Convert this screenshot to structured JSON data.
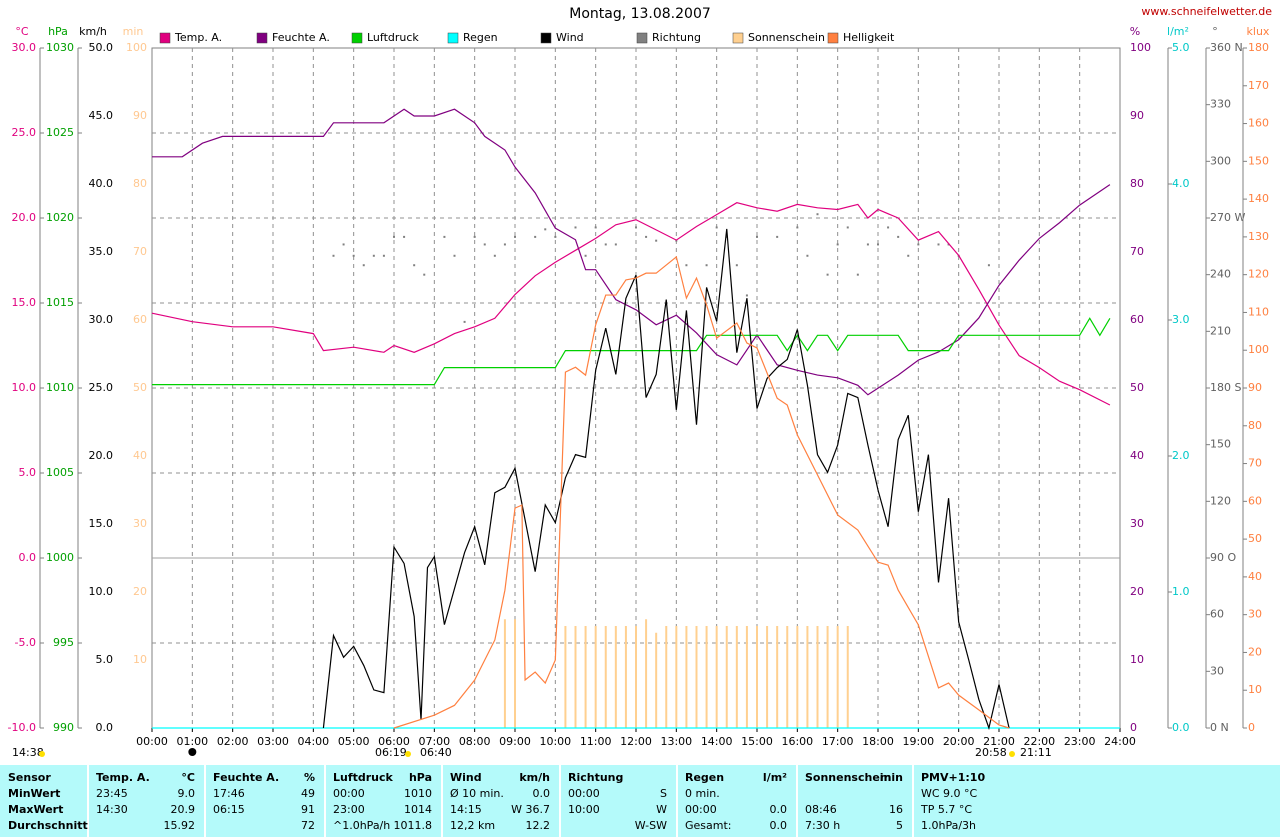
{
  "chart_data": {
    "type": "line",
    "title": "Montag, 13.08.2007",
    "source": "www.schneifelwetter.de",
    "xlim": [
      0,
      24
    ],
    "xticks": [
      {
        "value": 0,
        "label": "00:00"
      },
      {
        "value": 1,
        "label": "01:00"
      },
      {
        "value": 2,
        "label": "02:00"
      },
      {
        "value": 3,
        "label": "03:00"
      },
      {
        "value": 4,
        "label": "04:00"
      },
      {
        "value": 5,
        "label": "05:00"
      },
      {
        "value": 6,
        "label": "06:00"
      },
      {
        "value": 7,
        "label": "07:00"
      },
      {
        "value": 8,
        "label": "08:00"
      },
      {
        "value": 9,
        "label": "09:00"
      },
      {
        "value": 10,
        "label": "10:00"
      },
      {
        "value": 11,
        "label": "11:00"
      },
      {
        "value": 12,
        "label": "12:00"
      },
      {
        "value": 13,
        "label": "13:00"
      },
      {
        "value": 14,
        "label": "14:00"
      },
      {
        "value": 15,
        "label": "15:00"
      },
      {
        "value": 16,
        "label": "16:00"
      },
      {
        "value": 17,
        "label": "17:00"
      },
      {
        "value": 18,
        "label": "18:00"
      },
      {
        "value": 19,
        "label": "19:00"
      },
      {
        "value": 20,
        "label": "20:00"
      },
      {
        "value": 21,
        "label": "21:00"
      },
      {
        "value": 22,
        "label": "22:00"
      },
      {
        "value": 23,
        "label": "23:00"
      },
      {
        "value": 24,
        "label": "24:00"
      }
    ],
    "grid": true,
    "axes": [
      {
        "unit": "°C",
        "color": "#e0007f",
        "lim": [
          -10,
          30
        ],
        "ticks": [
          {
            "value": -10,
            "label": "-10.0"
          },
          {
            "value": -5,
            "label": "-5.0"
          },
          {
            "value": 0,
            "label": "0.0"
          },
          {
            "value": 5,
            "label": "5.0"
          },
          {
            "value": 10,
            "label": "10.0"
          },
          {
            "value": 15,
            "label": "15.0"
          },
          {
            "value": 20,
            "label": "20.0"
          },
          {
            "value": 25,
            "label": "25.0"
          },
          {
            "value": 30,
            "label": "30.0"
          }
        ]
      },
      {
        "unit": "hPa",
        "color": "#00a000",
        "lim": [
          990,
          1030
        ],
        "ticks": [
          990,
          995,
          1000,
          1005,
          1010,
          1015,
          1020,
          1025,
          1030
        ]
      },
      {
        "unit": "km/h",
        "color": "#000000",
        "lim": [
          0,
          50
        ],
        "ticks": [
          {
            "value": 0,
            "label": "0.0"
          },
          {
            "value": 5,
            "label": "5.0"
          },
          {
            "value": 10,
            "label": "10.0"
          },
          {
            "value": 15,
            "label": "15.0"
          },
          {
            "value": 20,
            "label": "20.0"
          },
          {
            "value": 25,
            "label": "25.0"
          },
          {
            "value": 30,
            "label": "30.0"
          },
          {
            "value": 35,
            "label": "35.0"
          },
          {
            "value": 40,
            "label": "40.0"
          },
          {
            "value": 45,
            "label": "45.0"
          },
          {
            "value": 50,
            "label": "50.0"
          }
        ]
      },
      {
        "unit": "min",
        "color": "#ffc890",
        "lim": [
          0,
          100
        ],
        "ticks": [
          10,
          20,
          30,
          40,
          50,
          60,
          70,
          80,
          90,
          100
        ]
      },
      {
        "unit": "%",
        "color": "#800080",
        "lim": [
          0,
          100
        ],
        "ticks": [
          0,
          10,
          20,
          30,
          40,
          50,
          60,
          70,
          80,
          90,
          100
        ]
      },
      {
        "unit": "l/m²",
        "color": "#00c8c8",
        "lim": [
          0,
          5
        ],
        "ticks": [
          {
            "value": 0,
            "label": "0.0"
          },
          {
            "value": 1,
            "label": "1.0"
          },
          {
            "value": 2,
            "label": "2.0"
          },
          {
            "value": 3,
            "label": "3.0"
          },
          {
            "value": 4,
            "label": "4.0"
          },
          {
            "value": 5,
            "label": "5.0"
          }
        ]
      },
      {
        "unit": "°",
        "color": "#606060",
        "lim": [
          0,
          360
        ],
        "ticks": [
          {
            "value": 0,
            "label": "0 N"
          },
          30,
          60,
          {
            "value": 90,
            "label": "90 O"
          },
          120,
          150,
          {
            "value": 180,
            "label": "180 S"
          },
          210,
          240,
          {
            "value": 270,
            "label": "270 W"
          },
          300,
          330,
          {
            "value": 360,
            "label": "360 N"
          }
        ]
      },
      {
        "unit": "klux",
        "color": "#ff8040",
        "lim": [
          0,
          180
        ],
        "ticks": [
          0,
          10,
          20,
          30,
          40,
          50,
          60,
          70,
          80,
          90,
          100,
          110,
          120,
          130,
          140,
          150,
          160,
          170,
          180
        ]
      }
    ],
    "series": [
      {
        "name": "Temp. A.",
        "color": "#e0007f",
        "axis": "°C",
        "style": "line",
        "x": [
          0,
          1,
          2,
          3,
          4,
          4.25,
          5,
          5.75,
          6,
          6.5,
          7,
          7.5,
          8,
          8.5,
          9,
          9.5,
          10,
          10.5,
          11,
          11.5,
          12,
          12.5,
          13,
          13.5,
          14,
          14.5,
          15,
          15.5,
          16,
          16.5,
          17,
          17.5,
          17.75,
          18,
          18.5,
          19,
          19.5,
          20,
          20.5,
          21,
          21.5,
          22,
          22.5,
          23,
          23.75
        ],
        "values": [
          14.4,
          13.9,
          13.6,
          13.6,
          13.2,
          12.2,
          12.4,
          12.1,
          12.5,
          12.1,
          12.6,
          13.2,
          13.6,
          14.1,
          15.5,
          16.6,
          17.4,
          18.1,
          18.8,
          19.6,
          19.9,
          19.3,
          18.7,
          19.5,
          20.2,
          20.9,
          20.6,
          20.4,
          20.8,
          20.6,
          20.5,
          20.8,
          20.0,
          20.5,
          20.0,
          18.7,
          19.2,
          17.8,
          15.8,
          13.7,
          11.9,
          11.2,
          10.4,
          9.9,
          9.0
        ]
      },
      {
        "name": "Feuchte A.",
        "color": "#800080",
        "axis": "%",
        "style": "line",
        "x": [
          0,
          0.75,
          1.25,
          1.75,
          3,
          4.25,
          4.5,
          5.75,
          6.25,
          6.5,
          7,
          7.5,
          8,
          8.25,
          8.75,
          9,
          9.5,
          10,
          10.5,
          10.75,
          11,
          11.5,
          12,
          12.5,
          13,
          13.5,
          14,
          14.5,
          15,
          15.5,
          16,
          16.5,
          17,
          17.5,
          17.75,
          18.5,
          19,
          19.5,
          20,
          20.5,
          21,
          21.5,
          22,
          22.5,
          23,
          23.75
        ],
        "values": [
          84,
          84,
          86,
          87,
          87,
          87,
          89,
          89,
          91,
          90,
          90,
          91,
          89,
          87,
          85,
          82.5,
          78.7,
          73.5,
          71.8,
          67.4,
          67.4,
          63,
          61.5,
          59.3,
          60.7,
          58.1,
          54.9,
          53.4,
          57.8,
          53.4,
          52.6,
          51.9,
          51.5,
          50.4,
          49,
          51.9,
          54.1,
          55.3,
          57.1,
          60.3,
          65.1,
          68.8,
          72,
          74.3,
          76.9,
          79.9
        ]
      },
      {
        "name": "Luftdruck",
        "color": "#00d000",
        "axis": "hPa",
        "style": "line",
        "x": [
          0,
          7,
          7.25,
          10,
          10.25,
          13.5,
          13.75,
          15.5,
          15.75,
          16,
          16.25,
          16.5,
          16.75,
          17,
          17.25,
          18.5,
          18.75,
          19.75,
          20,
          23,
          23.25,
          23.5,
          23.75
        ],
        "values": [
          1010.2,
          1010.2,
          1011.2,
          1011.2,
          1012.2,
          1012.2,
          1013.1,
          1013.1,
          1012.2,
          1013.1,
          1012.2,
          1013.1,
          1013.1,
          1012.2,
          1013.1,
          1013.1,
          1012.2,
          1012.2,
          1013.1,
          1013.1,
          1014.1,
          1013.1,
          1014.1
        ]
      },
      {
        "name": "Regen",
        "color": "#00ffff",
        "axis": "l/m²",
        "style": "line",
        "x": [
          0,
          24
        ],
        "values": [
          0,
          0
        ]
      },
      {
        "name": "Wind",
        "color": "#000000",
        "axis": "km/h",
        "style": "line",
        "x": [
          4.25,
          4.5,
          4.75,
          5,
          5.25,
          5.5,
          5.75,
          6,
          6.25,
          6.5,
          6.67,
          6.83,
          7,
          7.25,
          7.75,
          8,
          8.25,
          8.5,
          8.75,
          9,
          9.25,
          9.5,
          9.75,
          10,
          10.25,
          10.5,
          10.75,
          11,
          11.25,
          11.5,
          11.75,
          12,
          12.25,
          12.5,
          12.75,
          13,
          13.25,
          13.5,
          13.75,
          14,
          14.25,
          14.5,
          14.75,
          15,
          15.25,
          15.5,
          15.75,
          16,
          16.25,
          16.5,
          16.75,
          17,
          17.25,
          17.5,
          17.75,
          18,
          18.25,
          18.5,
          18.75,
          19,
          19.25,
          19.5,
          19.75,
          20,
          20.25,
          20.5,
          20.75,
          21,
          21.25
        ],
        "values": [
          0,
          6.8,
          5.2,
          6.0,
          4.6,
          2.8,
          2.6,
          13.3,
          12.1,
          8.2,
          0.6,
          11.8,
          12.6,
          7.6,
          12.9,
          14.8,
          12.0,
          17.3,
          17.7,
          19.1,
          15.3,
          11.5,
          16.4,
          15.1,
          18.4,
          20.1,
          19.9,
          26.3,
          29.4,
          26.0,
          31.6,
          33.3,
          24.3,
          26.0,
          31.5,
          23.4,
          30.7,
          22.3,
          32.4,
          29.9,
          36.7,
          27.6,
          31.6,
          23.5,
          25.7,
          26.5,
          27.1,
          29.3,
          25.2,
          20.1,
          18.8,
          20.8,
          24.6,
          24.3,
          20.8,
          17.5,
          14.8,
          21.2,
          23.0,
          15.9,
          20.1,
          10.7,
          16.9,
          7.8,
          5.0,
          2.1,
          0,
          3.2,
          0
        ]
      },
      {
        "name": "Richtung",
        "color": "#808080",
        "axis": "°",
        "style": "dots",
        "x": [
          4.5,
          4.75,
          5,
          5.25,
          5.5,
          5.75,
          6,
          6.25,
          6.5,
          6.75,
          7.25,
          7.5,
          7.75,
          8,
          8.25,
          8.5,
          8.75,
          9,
          9.5,
          9.75,
          10,
          10.5,
          10.75,
          11,
          11.25,
          11.5,
          12,
          12.25,
          12.5,
          13,
          13.25,
          13.75,
          14,
          14.25,
          14.5,
          14.75,
          15,
          15.5,
          16,
          16.25,
          16.5,
          16.75,
          17,
          17.25,
          17.5,
          17.75,
          18,
          18.25,
          18.5,
          18.75,
          19,
          19.5,
          19.75,
          20,
          20.75
        ],
        "values": [
          250,
          256,
          250,
          245,
          250,
          250,
          260,
          260,
          245,
          240,
          260,
          250,
          215,
          260,
          256,
          250,
          256,
          260,
          260,
          264,
          260,
          265,
          250,
          265,
          256,
          256,
          265,
          260,
          258,
          258,
          245,
          245,
          265,
          260,
          245,
          229,
          260,
          260,
          265,
          250,
          272,
          240,
          256,
          265,
          240,
          256,
          256,
          265,
          260,
          250,
          256,
          256,
          256,
          250,
          245
        ]
      },
      {
        "name": "Sonnenschein",
        "color": "#ffd090",
        "axis": "min",
        "style": "bars",
        "x": [
          8.75,
          9,
          10.25,
          10.5,
          10.75,
          11,
          11.25,
          11.5,
          11.75,
          12,
          12.25,
          12.5,
          12.75,
          13,
          13.25,
          13.5,
          13.75,
          14,
          14.25,
          14.5,
          14.75,
          15,
          15.25,
          15.5,
          15.75,
          16,
          16.25,
          16.5,
          16.75,
          17,
          17.25
        ],
        "values": [
          16,
          16,
          15,
          15,
          15,
          15,
          15,
          15,
          15,
          15,
          16,
          14,
          15,
          15,
          15,
          15,
          15,
          15,
          15,
          15,
          15,
          15,
          15,
          15,
          15,
          15,
          15,
          15,
          15,
          15,
          15
        ]
      },
      {
        "name": "Helligkeit",
        "color": "#ff8040",
        "axis": "klux",
        "style": "line",
        "x": [
          6,
          7,
          7.5,
          8,
          8.5,
          8.75,
          9,
          9.17,
          9.25,
          9.5,
          9.75,
          10,
          10.25,
          10.5,
          10.75,
          11,
          11.25,
          11.5,
          11.75,
          12,
          12.25,
          12.5,
          13,
          13.25,
          13.5,
          13.75,
          14,
          14.5,
          14.75,
          15,
          15.5,
          15.75,
          16,
          16.5,
          17,
          17.5,
          18,
          18.25,
          18.5,
          19,
          19.5,
          19.75,
          20,
          20.5,
          21,
          21.25
        ],
        "values": [
          0,
          3.4,
          6,
          12.7,
          23.3,
          36.5,
          58.2,
          59,
          12.7,
          14.8,
          11.9,
          18,
          94.2,
          95.5,
          93.4,
          106.7,
          114.6,
          114.6,
          118.6,
          119.1,
          120.4,
          120.4,
          124.7,
          113.8,
          119.1,
          112,
          103.2,
          107.2,
          101.9,
          100.6,
          87.3,
          85.5,
          77.6,
          67,
          56.4,
          52.4,
          43.9,
          43.1,
          36.5,
          27.3,
          10.6,
          11.9,
          8.7,
          4.8,
          0.8,
          0
        ]
      }
    ],
    "annotations": [
      "14:38",
      "06:19",
      "06:40",
      "20:58",
      "21:11"
    ]
  },
  "table": {
    "columns": [
      {
        "title": "Sensor"
      },
      {
        "title": "Temp. A.",
        "unit": "°C"
      },
      {
        "title": "Feuchte A.",
        "unit": "%"
      },
      {
        "title": "Luftdruck",
        "unit": "hPa"
      },
      {
        "title": "Wind",
        "unit": "km/h"
      },
      {
        "title": "Richtung"
      },
      {
        "title": "Regen",
        "unit": "l/m²"
      },
      {
        "title": "Sonnenschein",
        "unit": "min"
      },
      {
        "title": "PMV+1:10"
      }
    ],
    "rows": [
      {
        "label": "MinWert",
        "cells": [
          [
            "23:45",
            "9.0"
          ],
          [
            "17:46",
            "49"
          ],
          [
            "00:00",
            "1010"
          ],
          [
            "Ø 10 min.",
            "0.0"
          ],
          [
            "00:00",
            "S"
          ],
          [
            "0 min.",
            null
          ],
          [
            null,
            null
          ],
          [
            "WC 9.0 °C",
            null
          ]
        ]
      },
      {
        "label": "MaxWert",
        "cells": [
          [
            "14:30",
            "20.9"
          ],
          [
            "06:15",
            "91"
          ],
          [
            "23:00",
            "1014"
          ],
          [
            "14:15",
            "W 36.7"
          ],
          [
            "10:00",
            "W"
          ],
          [
            "00:00",
            "0.0"
          ],
          [
            "08:46",
            "16"
          ],
          [
            "TP 5.7 °C",
            null
          ]
        ]
      },
      {
        "label": "Durchschnitt",
        "cells": [
          [
            null,
            "15.92"
          ],
          [
            null,
            "72"
          ],
          [
            "^1.0hPa/h",
            "1011.8"
          ],
          [
            "12,2 km",
            "12.2"
          ],
          [
            null,
            "W-SW"
          ],
          [
            "Gesamt:",
            "0.0"
          ],
          [
            "7:30 h",
            "5"
          ],
          [
            "1.0hPa/3h",
            null
          ]
        ]
      }
    ]
  }
}
